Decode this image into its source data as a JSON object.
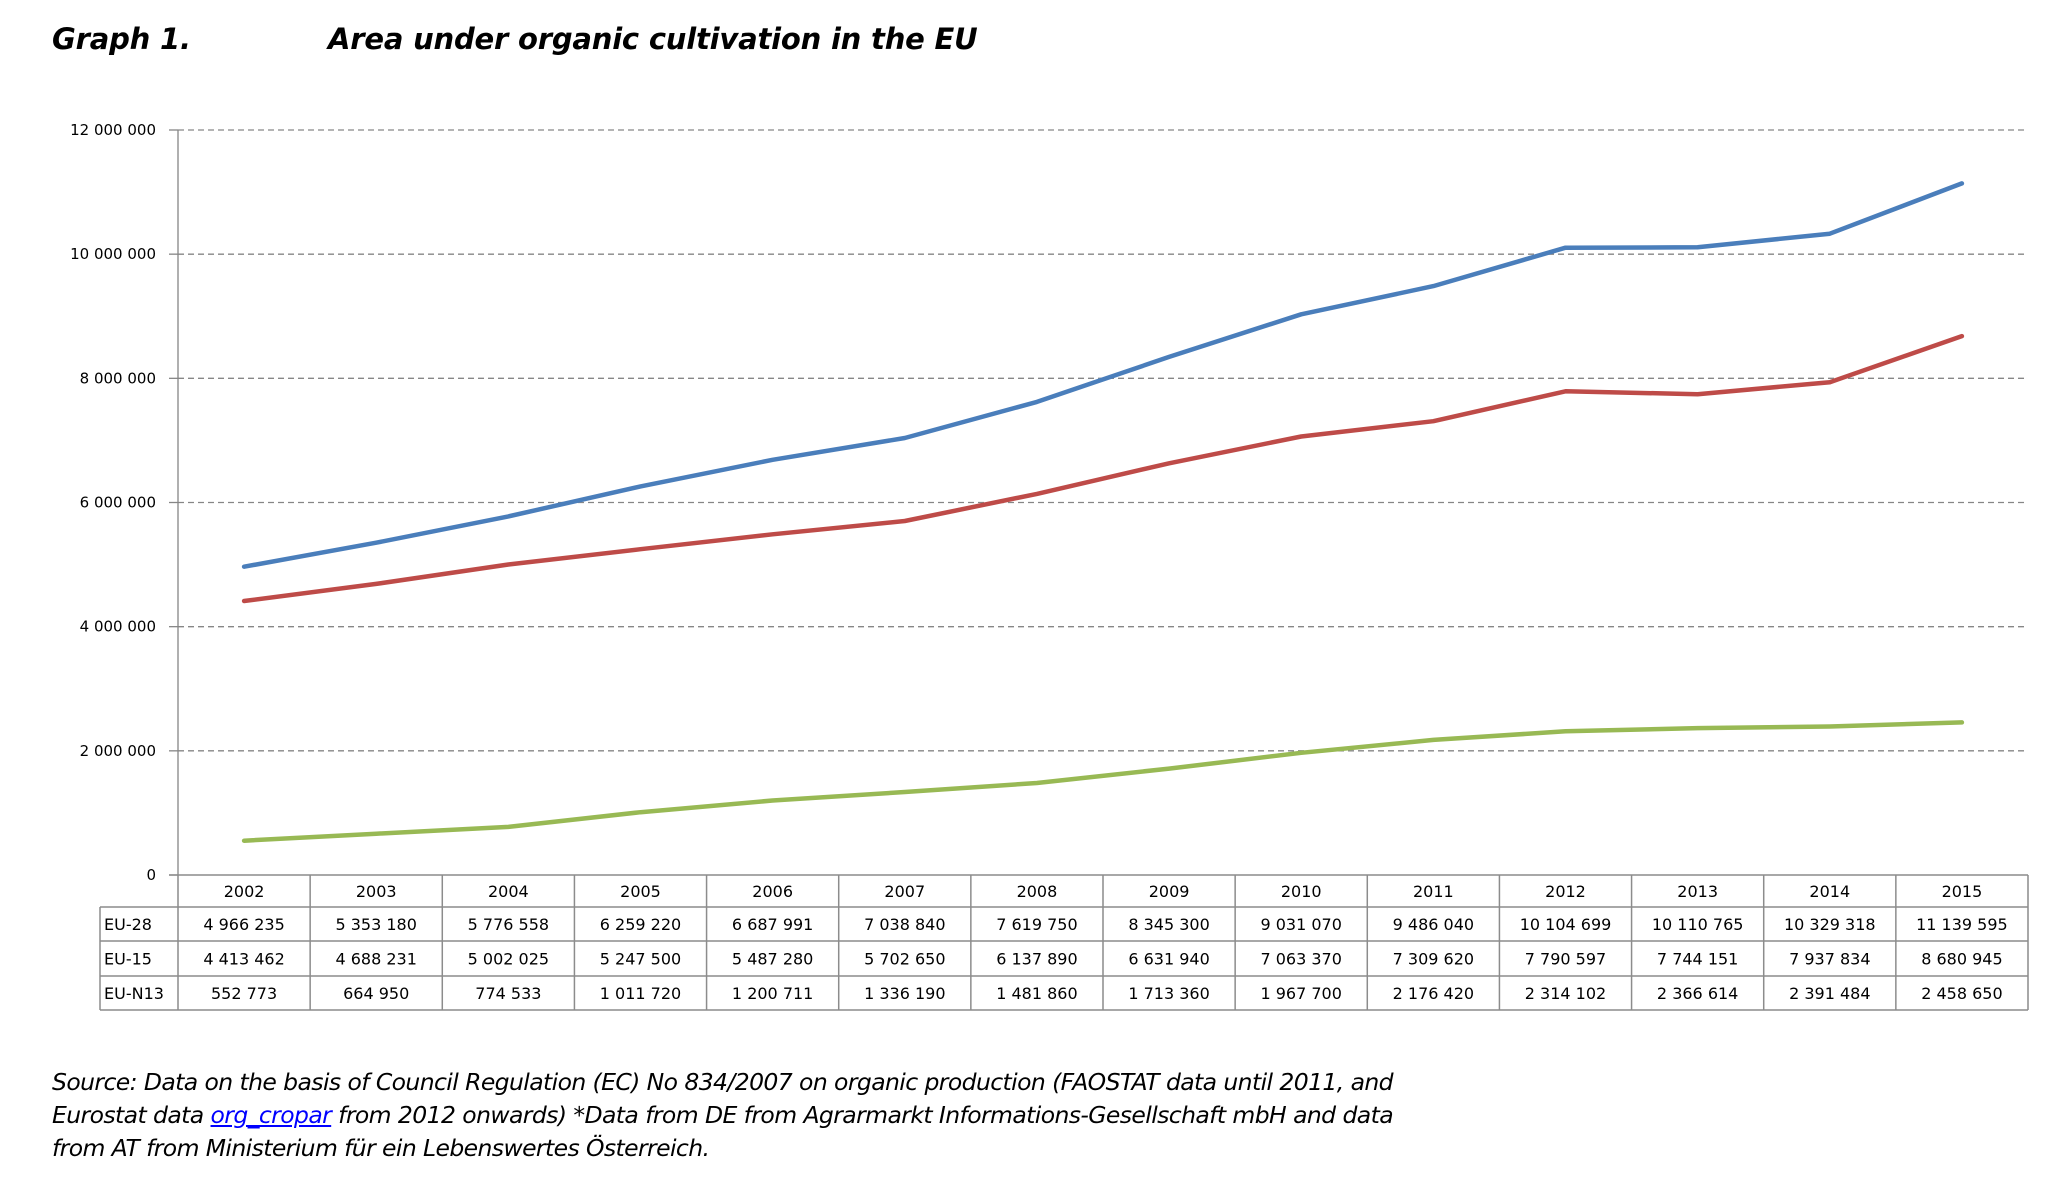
{
  "header": {
    "graph_number": "Graph 1.",
    "title": "Area under organic cultivation in the EU"
  },
  "chart_data": {
    "type": "line",
    "title": "Area under organic cultivation in the EU",
    "xlabel": "",
    "ylabel": "",
    "ylim": [
      0,
      12000000
    ],
    "yticks": [
      0,
      2000000,
      4000000,
      6000000,
      8000000,
      10000000,
      12000000
    ],
    "ytick_labels": [
      "0",
      "2 000 000",
      "4 000 000",
      "6 000 000",
      "8 000 000",
      "10 000 000",
      "12 000 000"
    ],
    "grid": "horizontal-dashed",
    "legend": "data-table-below",
    "categories": [
      "2002",
      "2003",
      "2004",
      "2005",
      "2006",
      "2007",
      "2008",
      "2009",
      "2010",
      "2011",
      "2012",
      "2013",
      "2014",
      "2015"
    ],
    "series": [
      {
        "name": "EU-28",
        "color": "#4a7ebb",
        "values": [
          4966235,
          5353180,
          5776558,
          6259220,
          6687991,
          7038840,
          7619750,
          8345300,
          9031070,
          9486040,
          10104699,
          10110765,
          10329318,
          11139595
        ],
        "labels": [
          "4 966 235",
          "5 353 180",
          "5 776 558",
          "6 259 220",
          "6 687 991",
          "7 038 840",
          "7 619 750",
          "8 345 300",
          "9 031 070",
          "9 486 040",
          "10 104 699",
          "10 110 765",
          "10 329 318",
          "11 139 595"
        ]
      },
      {
        "name": "EU-15",
        "color": "#be4b48",
        "values": [
          4413462,
          4688231,
          5002025,
          5247500,
          5487280,
          5702650,
          6137890,
          6631940,
          7063370,
          7309620,
          7790597,
          7744151,
          7937834,
          8680945
        ],
        "labels": [
          "4 413 462",
          "4 688 231",
          "5 002 025",
          "5 247 500",
          "5 487 280",
          "5 702 650",
          "6 137 890",
          "6 631 940",
          "7 063 370",
          "7 309 620",
          "7 790 597",
          "7 744 151",
          "7 937 834",
          "8 680 945"
        ]
      },
      {
        "name": "EU-N13",
        "color": "#98b954",
        "values": [
          552773,
          664950,
          774533,
          1011720,
          1200711,
          1336190,
          1481860,
          1713360,
          1967700,
          2176420,
          2314102,
          2366614,
          2391484,
          2458650
        ],
        "labels": [
          "552 773",
          "664 950",
          "774 533",
          "1 011 720",
          "1 200 711",
          "1 336 190",
          "1 481 860",
          "1 713 360",
          "1 967 700",
          "2 176 420",
          "2 314 102",
          "2 366 614",
          "2 391 484",
          "2 458 650"
        ]
      }
    ]
  },
  "source": {
    "before_link": "Source: Data on the basis of Council Regulation (EC) No 834/2007 on organic production (FAOSTAT data until 2011, and Eurostat data ",
    "link_text": "org_cropar",
    "after_link": " from 2012 onwards) *Data from DE from Agrarmarkt Informations-Gesellschaft mbH and data from AT from Ministerium für ein Lebenswertes Österreich."
  }
}
